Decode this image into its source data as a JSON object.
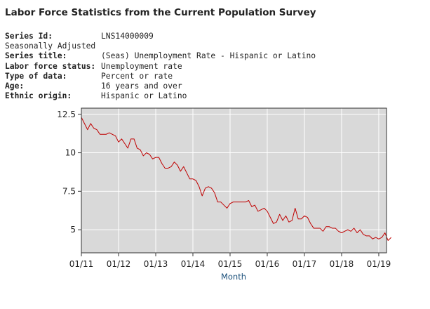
{
  "header": {
    "title": "Labor Force Statistics from the Current Population Survey"
  },
  "meta": {
    "series_id_label": "Series Id:",
    "series_id": "LNS14000009",
    "seasonal": "Seasonally Adjusted",
    "series_title_label": "Series title:",
    "series_title": "(Seas) Unemployment Rate - Hispanic or Latino",
    "labor_force_status_label": "Labor force status:",
    "labor_force_status": "Unemployment rate",
    "type_of_data_label": "Type of data:",
    "type_of_data": "Percent or rate",
    "age_label": "Age:",
    "age": "16 years and over",
    "ethnic_origin_label": "Ethnic origin:",
    "ethnic_origin": "Hispanic or Latino"
  },
  "colors": {
    "plot_bg": "#d9d9d9",
    "grid": "#ffffff",
    "line": "#c00000",
    "axis": "#333333",
    "xlabel": "#1a4f7a"
  },
  "chart_data": {
    "type": "line",
    "title": "",
    "xlabel": "Month",
    "ylabel": "",
    "ylim": [
      3.5,
      12.9
    ],
    "xlim": [
      0,
      98.5
    ],
    "yticks": [
      5,
      7.5,
      10,
      12.5
    ],
    "ytick_labels": [
      "5",
      "7.5",
      "10",
      "12.5"
    ],
    "xticks": [
      0,
      12,
      24,
      36,
      48,
      60,
      72,
      84,
      96
    ],
    "xtick_labels": [
      "01/11",
      "01/12",
      "01/13",
      "01/14",
      "01/15",
      "01/16",
      "01/17",
      "01/18",
      "01/19"
    ],
    "grid": true,
    "series": [
      {
        "name": "Unemployment Rate - Hispanic or Latino",
        "x_start": "01/11",
        "values": [
          12.3,
          11.9,
          11.5,
          11.9,
          11.6,
          11.5,
          11.2,
          11.2,
          11.2,
          11.3,
          11.2,
          11.1,
          10.7,
          10.9,
          10.6,
          10.3,
          10.9,
          10.9,
          10.3,
          10.2,
          9.8,
          10.0,
          9.9,
          9.6,
          9.7,
          9.7,
          9.3,
          9.0,
          9.0,
          9.1,
          9.4,
          9.2,
          8.8,
          9.1,
          8.7,
          8.3,
          8.3,
          8.2,
          7.8,
          7.2,
          7.7,
          7.8,
          7.7,
          7.4,
          6.8,
          6.8,
          6.6,
          6.4,
          6.7,
          6.8,
          6.8,
          6.8,
          6.8,
          6.8,
          6.9,
          6.5,
          6.6,
          6.2,
          6.3,
          6.4,
          6.2,
          5.8,
          5.4,
          5.5,
          6.0,
          5.6,
          5.9,
          5.5,
          5.6,
          6.4,
          5.7,
          5.7,
          5.9,
          5.8,
          5.4,
          5.1,
          5.1,
          5.1,
          4.9,
          5.2,
          5.2,
          5.1,
          5.1,
          4.9,
          4.8,
          4.9,
          5.0,
          4.9,
          5.1,
          4.8,
          5.0,
          4.7,
          4.6,
          4.6,
          4.4,
          4.5,
          4.4,
          4.5,
          4.8,
          4.3,
          4.5
        ]
      }
    ]
  }
}
